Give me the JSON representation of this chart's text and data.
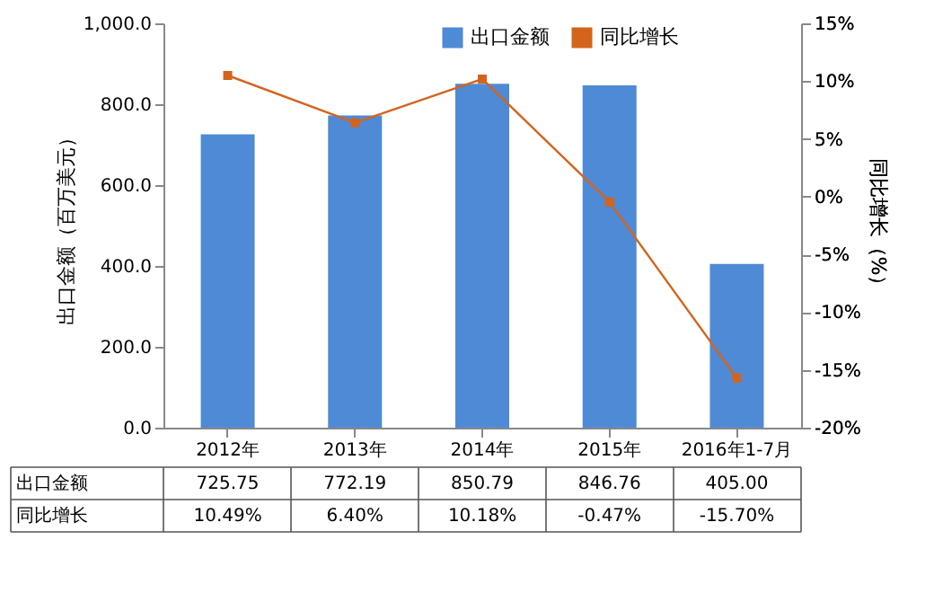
{
  "chart_data": {
    "type": "bar",
    "categories": [
      "2012年",
      "2013年",
      "2014年",
      "2015年",
      "2016年1-7月"
    ],
    "ylabel": "出口金额（百万美元）",
    "y2label": "同比增长（%）",
    "series": [
      {
        "name": "出口金额",
        "color": "#4f8ad6",
        "values": [
          725.75,
          772.19,
          850.79,
          846.76,
          405.0
        ],
        "value_labels": [
          "725.75",
          "772.19",
          "850.79",
          "846.76",
          "405.00"
        ]
      },
      {
        "name": "同比增长",
        "type": "line",
        "axis": "y2",
        "color": "#d4641c",
        "marker": "square",
        "values": [
          10.49,
          6.4,
          10.18,
          -0.47,
          -15.7
        ],
        "value_labels": [
          "10.49%",
          "6.40%",
          "10.18%",
          "-0.47%",
          "-15.70%"
        ]
      }
    ],
    "ylim": [
      0,
      1000
    ],
    "yticks": [
      {
        "value": 0,
        "label": "0.0"
      },
      {
        "value": 200,
        "label": "200.0"
      },
      {
        "value": 400,
        "label": "400.0"
      },
      {
        "value": 600,
        "label": "600.0"
      },
      {
        "value": 800,
        "label": "800.0"
      },
      {
        "value": 1000,
        "label": "1,000.0"
      }
    ],
    "y2lim": [
      -20,
      15
    ],
    "y2ticks": [
      {
        "value": -20,
        "label": "-20%"
      },
      {
        "value": -15,
        "label": "-15%"
      },
      {
        "value": -10,
        "label": "-10%"
      },
      {
        "value": -5,
        "label": "-5%"
      },
      {
        "value": 0,
        "label": "0%"
      },
      {
        "value": 5,
        "label": "5%"
      },
      {
        "value": 10,
        "label": "10%"
      },
      {
        "value": 15,
        "label": "15%"
      }
    ],
    "grid": false,
    "legend": "top right"
  }
}
